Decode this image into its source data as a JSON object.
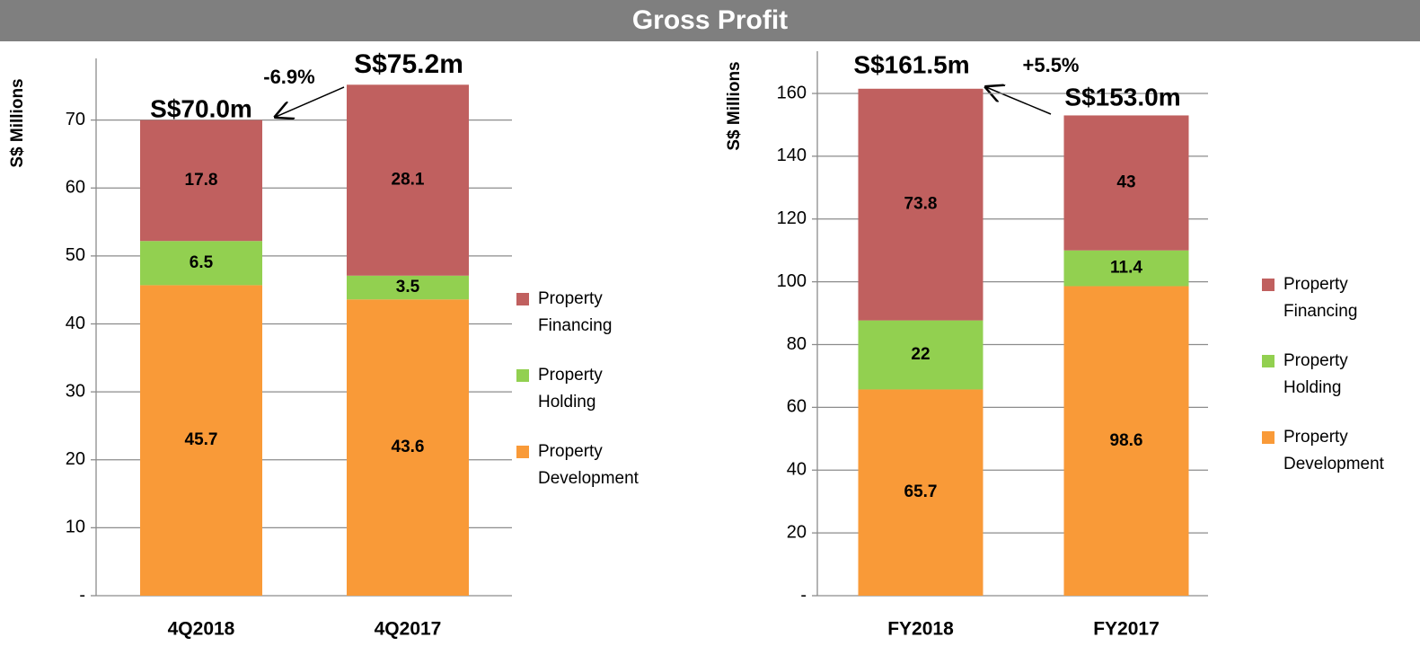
{
  "title": "Gross Profit",
  "chart_data": [
    {
      "type": "bar",
      "stacked": true,
      "y_label": "S$ Millions",
      "categories": [
        "4Q2018",
        "4Q2017"
      ],
      "series": [
        {
          "name": "Property Development",
          "color": "#f99a38",
          "values": [
            45.7,
            43.6
          ]
        },
        {
          "name": "Property Holding",
          "color": "#92d050",
          "values": [
            6.5,
            3.5
          ]
        },
        {
          "name": "Property Financing",
          "color": "#c0605f",
          "values": [
            17.8,
            28.1
          ]
        }
      ],
      "ylim": [
        0,
        80
      ],
      "yticks": [
        {
          "value": 0,
          "label": "-"
        },
        10,
        20,
        30,
        40,
        50,
        60,
        70
      ],
      "grid": true,
      "legend": "right",
      "annotations": [
        "-6.9%",
        "S$70.0m",
        "S$75.2m"
      ]
    },
    {
      "type": "bar",
      "stacked": true,
      "y_label": "S$ Millions",
      "categories": [
        "FY2018",
        "FY2017"
      ],
      "series": [
        {
          "name": "Property Development",
          "color": "#f99a38",
          "values": [
            65.7,
            98.6
          ]
        },
        {
          "name": "Property Holding",
          "color": "#92d050",
          "values": [
            22.0,
            11.4
          ]
        },
        {
          "name": "Property Financing",
          "color": "#c0605f",
          "values": [
            73.8,
            43.0
          ]
        }
      ],
      "ylim": [
        0,
        175
      ],
      "yticks": [
        {
          "value": 0,
          "label": "-"
        },
        20,
        40,
        60,
        80,
        100,
        120,
        140,
        160
      ],
      "grid": true,
      "legend": "right",
      "annotations": [
        "S$161.5m",
        "+5.5%",
        "S$153.0m"
      ]
    }
  ]
}
